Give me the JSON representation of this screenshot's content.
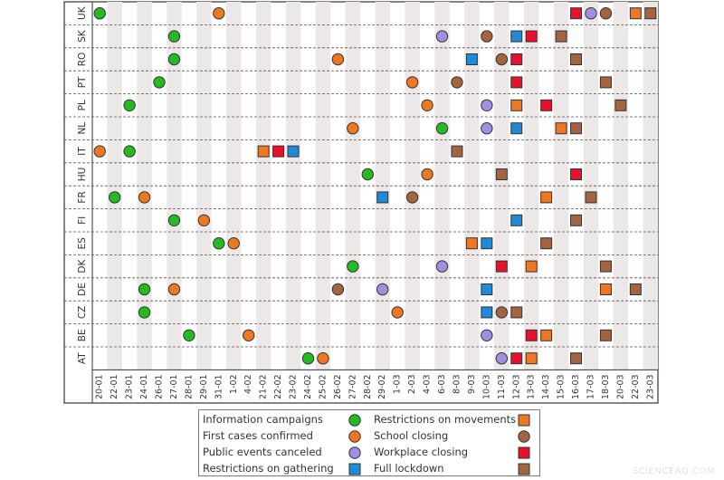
{
  "chart_data": {
    "type": "scatter",
    "title": "",
    "xlabel": "",
    "ylabel": "",
    "countries": [
      "UK",
      "SK",
      "RO",
      "PT",
      "PL",
      "NL",
      "IT",
      "HU",
      "FR",
      "FI",
      "ES",
      "DK",
      "DE",
      "CZ",
      "BE",
      "AT"
    ],
    "dates": [
      "20-01",
      "22-01",
      "23-01",
      "24-01",
      "26-01",
      "27-01",
      "28-01",
      "29-01",
      "31-01",
      "1-02",
      "4-02",
      "21-02",
      "22-02",
      "23-02",
      "24-02",
      "25-02",
      "26-02",
      "27-02",
      "28-02",
      "29-02",
      "1-03",
      "2-03",
      "4-03",
      "6-03",
      "8-03",
      "9-03",
      "10-03",
      "11-03",
      "12-03",
      "13-03",
      "14-03",
      "15-03",
      "16-03",
      "17-03",
      "18-03",
      "20-03",
      "22-03",
      "23-03"
    ],
    "grid": true,
    "legend_position": "bottom",
    "marker_types": {
      "info": {
        "label": "Information campaigns",
        "shape": "circle",
        "color": "#22bb22"
      },
      "cases": {
        "label": "First cases confirmed",
        "shape": "circle",
        "color": "#ee7722"
      },
      "events": {
        "label": "Public events canceled",
        "shape": "circle",
        "color": "#a28ee0"
      },
      "gathering": {
        "label": "Restrictions on gathering",
        "shape": "square",
        "color": "#1f8ad6"
      },
      "movements": {
        "label": "Restrictions on movements",
        "shape": "square",
        "color": "#ee7722"
      },
      "school": {
        "label": "School closing",
        "shape": "circle",
        "color": "#a46440"
      },
      "workplace": {
        "label": "Workplace closing",
        "shape": "square",
        "color": "#e8102a"
      },
      "lockdown": {
        "label": "Full lockdown",
        "shape": "square",
        "color": "#a46440"
      }
    },
    "legend_order": [
      "info",
      "movements",
      "cases",
      "school",
      "events",
      "workplace",
      "gathering",
      "lockdown"
    ],
    "points": [
      {
        "country": "UK",
        "date": "20-01",
        "type": "info"
      },
      {
        "country": "UK",
        "date": "31-01",
        "type": "cases"
      },
      {
        "country": "UK",
        "date": "16-03",
        "type": "workplace"
      },
      {
        "country": "UK",
        "date": "17-03",
        "type": "events"
      },
      {
        "country": "UK",
        "date": "18-03",
        "type": "school"
      },
      {
        "country": "UK",
        "date": "22-03",
        "type": "movements"
      },
      {
        "country": "UK",
        "date": "23-03",
        "type": "lockdown"
      },
      {
        "country": "SK",
        "date": "27-01",
        "type": "info"
      },
      {
        "country": "SK",
        "date": "6-03",
        "type": "events"
      },
      {
        "country": "SK",
        "date": "10-03",
        "type": "school"
      },
      {
        "country": "SK",
        "date": "12-03",
        "type": "gathering"
      },
      {
        "country": "SK",
        "date": "13-03",
        "type": "workplace"
      },
      {
        "country": "SK",
        "date": "15-03",
        "type": "lockdown"
      },
      {
        "country": "RO",
        "date": "27-01",
        "type": "info"
      },
      {
        "country": "RO",
        "date": "26-02",
        "type": "cases"
      },
      {
        "country": "RO",
        "date": "9-03",
        "type": "gathering"
      },
      {
        "country": "RO",
        "date": "11-03",
        "type": "school"
      },
      {
        "country": "RO",
        "date": "12-03",
        "type": "workplace"
      },
      {
        "country": "RO",
        "date": "16-03",
        "type": "lockdown"
      },
      {
        "country": "PT",
        "date": "26-01",
        "type": "info"
      },
      {
        "country": "PT",
        "date": "2-03",
        "type": "cases"
      },
      {
        "country": "PT",
        "date": "8-03",
        "type": "school"
      },
      {
        "country": "PT",
        "date": "12-03",
        "type": "workplace"
      },
      {
        "country": "PT",
        "date": "18-03",
        "type": "lockdown"
      },
      {
        "country": "PL",
        "date": "23-01",
        "type": "info"
      },
      {
        "country": "PL",
        "date": "4-03",
        "type": "cases"
      },
      {
        "country": "PL",
        "date": "10-03",
        "type": "events"
      },
      {
        "country": "PL",
        "date": "12-03",
        "type": "movements"
      },
      {
        "country": "PL",
        "date": "14-03",
        "type": "workplace"
      },
      {
        "country": "PL",
        "date": "20-03",
        "type": "lockdown"
      },
      {
        "country": "NL",
        "date": "27-02",
        "type": "cases"
      },
      {
        "country": "NL",
        "date": "6-03",
        "type": "info"
      },
      {
        "country": "NL",
        "date": "10-03",
        "type": "events"
      },
      {
        "country": "NL",
        "date": "12-03",
        "type": "gathering"
      },
      {
        "country": "NL",
        "date": "15-03",
        "type": "movements"
      },
      {
        "country": "NL",
        "date": "16-03",
        "type": "lockdown"
      },
      {
        "country": "IT",
        "date": "20-01",
        "type": "cases"
      },
      {
        "country": "IT",
        "date": "23-01",
        "type": "info"
      },
      {
        "country": "IT",
        "date": "21-02",
        "type": "movements"
      },
      {
        "country": "IT",
        "date": "22-02",
        "type": "workplace"
      },
      {
        "country": "IT",
        "date": "23-02",
        "type": "gathering"
      },
      {
        "country": "IT",
        "date": "8-03",
        "type": "lockdown"
      },
      {
        "country": "HU",
        "date": "28-02",
        "type": "info"
      },
      {
        "country": "HU",
        "date": "4-03",
        "type": "cases"
      },
      {
        "country": "HU",
        "date": "11-03",
        "type": "lockdown"
      },
      {
        "country": "HU",
        "date": "16-03",
        "type": "workplace"
      },
      {
        "country": "FR",
        "date": "22-01",
        "type": "info"
      },
      {
        "country": "FR",
        "date": "24-01",
        "type": "cases"
      },
      {
        "country": "FR",
        "date": "29-02",
        "type": "gathering"
      },
      {
        "country": "FR",
        "date": "2-03",
        "type": "school"
      },
      {
        "country": "FR",
        "date": "14-03",
        "type": "movements"
      },
      {
        "country": "FR",
        "date": "17-03",
        "type": "lockdown"
      },
      {
        "country": "FI",
        "date": "27-01",
        "type": "info"
      },
      {
        "country": "FI",
        "date": "29-01",
        "type": "cases"
      },
      {
        "country": "FI",
        "date": "12-03",
        "type": "gathering"
      },
      {
        "country": "FI",
        "date": "16-03",
        "type": "lockdown"
      },
      {
        "country": "ES",
        "date": "31-01",
        "type": "info"
      },
      {
        "country": "ES",
        "date": "1-02",
        "type": "cases"
      },
      {
        "country": "ES",
        "date": "9-03",
        "type": "movements"
      },
      {
        "country": "ES",
        "date": "10-03",
        "type": "gathering"
      },
      {
        "country": "ES",
        "date": "14-03",
        "type": "lockdown"
      },
      {
        "country": "DK",
        "date": "27-02",
        "type": "info"
      },
      {
        "country": "DK",
        "date": "6-03",
        "type": "events"
      },
      {
        "country": "DK",
        "date": "11-03",
        "type": "workplace"
      },
      {
        "country": "DK",
        "date": "13-03",
        "type": "movements"
      },
      {
        "country": "DK",
        "date": "18-03",
        "type": "lockdown"
      },
      {
        "country": "DE",
        "date": "24-01",
        "type": "info"
      },
      {
        "country": "DE",
        "date": "27-01",
        "type": "cases"
      },
      {
        "country": "DE",
        "date": "26-02",
        "type": "school"
      },
      {
        "country": "DE",
        "date": "29-02",
        "type": "events"
      },
      {
        "country": "DE",
        "date": "10-03",
        "type": "gathering"
      },
      {
        "country": "DE",
        "date": "18-03",
        "type": "movements"
      },
      {
        "country": "DE",
        "date": "22-03",
        "type": "lockdown"
      },
      {
        "country": "CZ",
        "date": "24-01",
        "type": "info"
      },
      {
        "country": "CZ",
        "date": "1-03",
        "type": "cases"
      },
      {
        "country": "CZ",
        "date": "10-03",
        "type": "gathering"
      },
      {
        "country": "CZ",
        "date": "11-03",
        "type": "school"
      },
      {
        "country": "CZ",
        "date": "12-03",
        "type": "lockdown"
      },
      {
        "country": "BE",
        "date": "28-01",
        "type": "info"
      },
      {
        "country": "BE",
        "date": "4-02",
        "type": "cases"
      },
      {
        "country": "BE",
        "date": "10-03",
        "type": "events"
      },
      {
        "country": "BE",
        "date": "13-03",
        "type": "workplace"
      },
      {
        "country": "BE",
        "date": "14-03",
        "type": "movements"
      },
      {
        "country": "BE",
        "date": "18-03",
        "type": "lockdown"
      },
      {
        "country": "AT",
        "date": "24-02",
        "type": "info"
      },
      {
        "country": "AT",
        "date": "25-02",
        "type": "cases"
      },
      {
        "country": "AT",
        "date": "11-03",
        "type": "events"
      },
      {
        "country": "AT",
        "date": "12-03",
        "type": "workplace"
      },
      {
        "country": "AT",
        "date": "13-03",
        "type": "movements"
      },
      {
        "country": "AT",
        "date": "16-03",
        "type": "lockdown"
      }
    ]
  },
  "watermark": "SCIENCEAQ.COM"
}
